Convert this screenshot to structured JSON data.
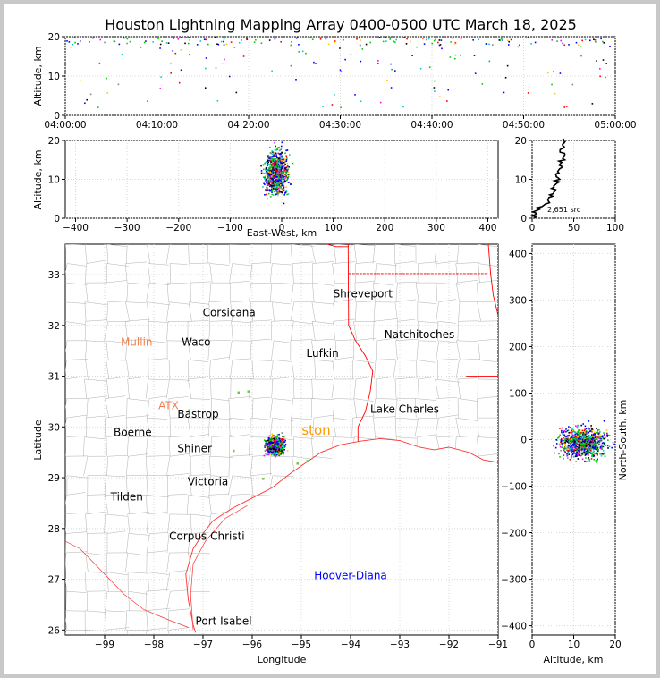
{
  "chart_data": [
    {
      "type": "scatter",
      "panel": "altitude-vs-time",
      "title": "Houston Lightning Mapping Array 0400-0500 UTC March 18, 2025",
      "xlabel": "",
      "ylabel": "Altitude, km",
      "x_ticks": [
        "04:00:00",
        "04:10:00",
        "04:20:00",
        "04:30:00",
        "04:40:00",
        "04:50:00",
        "05:00:00"
      ],
      "y_ticks": [
        0,
        10,
        20
      ],
      "xlim": [
        "04:00:00",
        "05:00:00"
      ],
      "ylim": [
        0,
        20
      ],
      "grid": true
    },
    {
      "type": "scatter",
      "panel": "altitude-vs-east-west",
      "xlabel": "East-West, km",
      "ylabel": "Altitude, km",
      "x_ticks": [
        -400,
        -300,
        -200,
        -100,
        0,
        100,
        200,
        300,
        400
      ],
      "y_ticks": [
        0,
        10,
        20
      ],
      "xlim": [
        -420,
        420
      ],
      "ylim": [
        0,
        20
      ],
      "grid": true
    },
    {
      "type": "line",
      "panel": "altitude-histogram",
      "annotation": "2,651 src",
      "x_ticks": [
        0,
        50,
        100
      ],
      "y_ticks": [
        0,
        10,
        20
      ],
      "xlim": [
        0,
        100
      ],
      "ylim": [
        0,
        20
      ],
      "points": [
        [
          2,
          0
        ],
        [
          4,
          1
        ],
        [
          8,
          2
        ],
        [
          14,
          3
        ],
        [
          18,
          4
        ],
        [
          22,
          5
        ],
        [
          24,
          6
        ],
        [
          26,
          7
        ],
        [
          28,
          8
        ],
        [
          30,
          9
        ],
        [
          32,
          10
        ],
        [
          31,
          11
        ],
        [
          33,
          12
        ],
        [
          35,
          13
        ],
        [
          34,
          14
        ],
        [
          37,
          15
        ],
        [
          38,
          16
        ],
        [
          36,
          17
        ],
        [
          39,
          18
        ],
        [
          37,
          19
        ],
        [
          38,
          19.8
        ]
      ]
    },
    {
      "type": "scatter",
      "panel": "plan-view-map",
      "xlabel": "Longitude",
      "ylabel": "Latitude",
      "x_ticks": [
        -99,
        -98,
        -97,
        -96,
        -95,
        -94,
        -93,
        -92,
        -91
      ],
      "y_ticks": [
        26,
        27,
        28,
        29,
        30,
        31,
        32,
        33
      ],
      "xlim": [
        -99.8,
        -91
      ],
      "ylim": [
        25.9,
        33.6
      ],
      "cities": [
        {
          "name": "Shreveport",
          "lon": -93.75,
          "lat": 32.55,
          "color": "#000000"
        },
        {
          "name": "Corsicana",
          "lon": -96.47,
          "lat": 32.18,
          "color": "#000000"
        },
        {
          "name": "Mullin",
          "lon": -98.35,
          "lat": 31.6,
          "color": "#f08050"
        },
        {
          "name": "Waco",
          "lon": -97.14,
          "lat": 31.6,
          "color": "#000000"
        },
        {
          "name": "Natchitoches",
          "lon": -92.6,
          "lat": 31.75,
          "color": "#000000"
        },
        {
          "name": "Lufkin",
          "lon": -94.57,
          "lat": 31.38,
          "color": "#000000"
        },
        {
          "name": "ATX",
          "lon": -97.7,
          "lat": 30.35,
          "color": "#f08050"
        },
        {
          "name": "Bastrop",
          "lon": -97.1,
          "lat": 30.18,
          "color": "#000000"
        },
        {
          "name": "Lake Charles",
          "lon": -92.9,
          "lat": 30.28,
          "color": "#000000"
        },
        {
          "name": "Boerne",
          "lon": -98.43,
          "lat": 29.82,
          "color": "#000000"
        },
        {
          "name": "Shiner",
          "lon": -97.17,
          "lat": 29.5,
          "color": "#000000"
        },
        {
          "name": "Victoria",
          "lon": -96.9,
          "lat": 28.85,
          "color": "#000000"
        },
        {
          "name": "Tilden",
          "lon": -98.55,
          "lat": 28.55,
          "color": "#000000"
        },
        {
          "name": "Corpus Christi",
          "lon": -96.92,
          "lat": 27.78,
          "color": "#000000"
        },
        {
          "name": "Hoover-Diana",
          "lon": -94.0,
          "lat": 27.0,
          "color": "#0000ff"
        },
        {
          "name": "Port Isabel",
          "lon": -96.58,
          "lat": 26.1,
          "color": "#000000"
        },
        {
          "name": "ston",
          "lon": -94.7,
          "lat": 29.85,
          "color": "#ff9900"
        }
      ]
    },
    {
      "type": "scatter",
      "panel": "north-south-vs-altitude",
      "xlabel": "Altitude, km",
      "ylabel": "North-South, km",
      "x_ticks": [
        0,
        10,
        20
      ],
      "y_ticks": [
        -400,
        -300,
        -200,
        -100,
        0,
        100,
        200,
        300,
        400
      ],
      "xlim": [
        0,
        20
      ],
      "ylim": [
        -420,
        420
      ],
      "grid": true
    }
  ],
  "colors": {
    "sources": [
      "#0000ff",
      "#00cc00",
      "#00cccc",
      "#ff0000",
      "#000000",
      "#ffcc00",
      "#ff00ff",
      "#888888"
    ],
    "state_border": "#ff0000",
    "coast": "#ff3333",
    "county": "#b0b0b0"
  }
}
